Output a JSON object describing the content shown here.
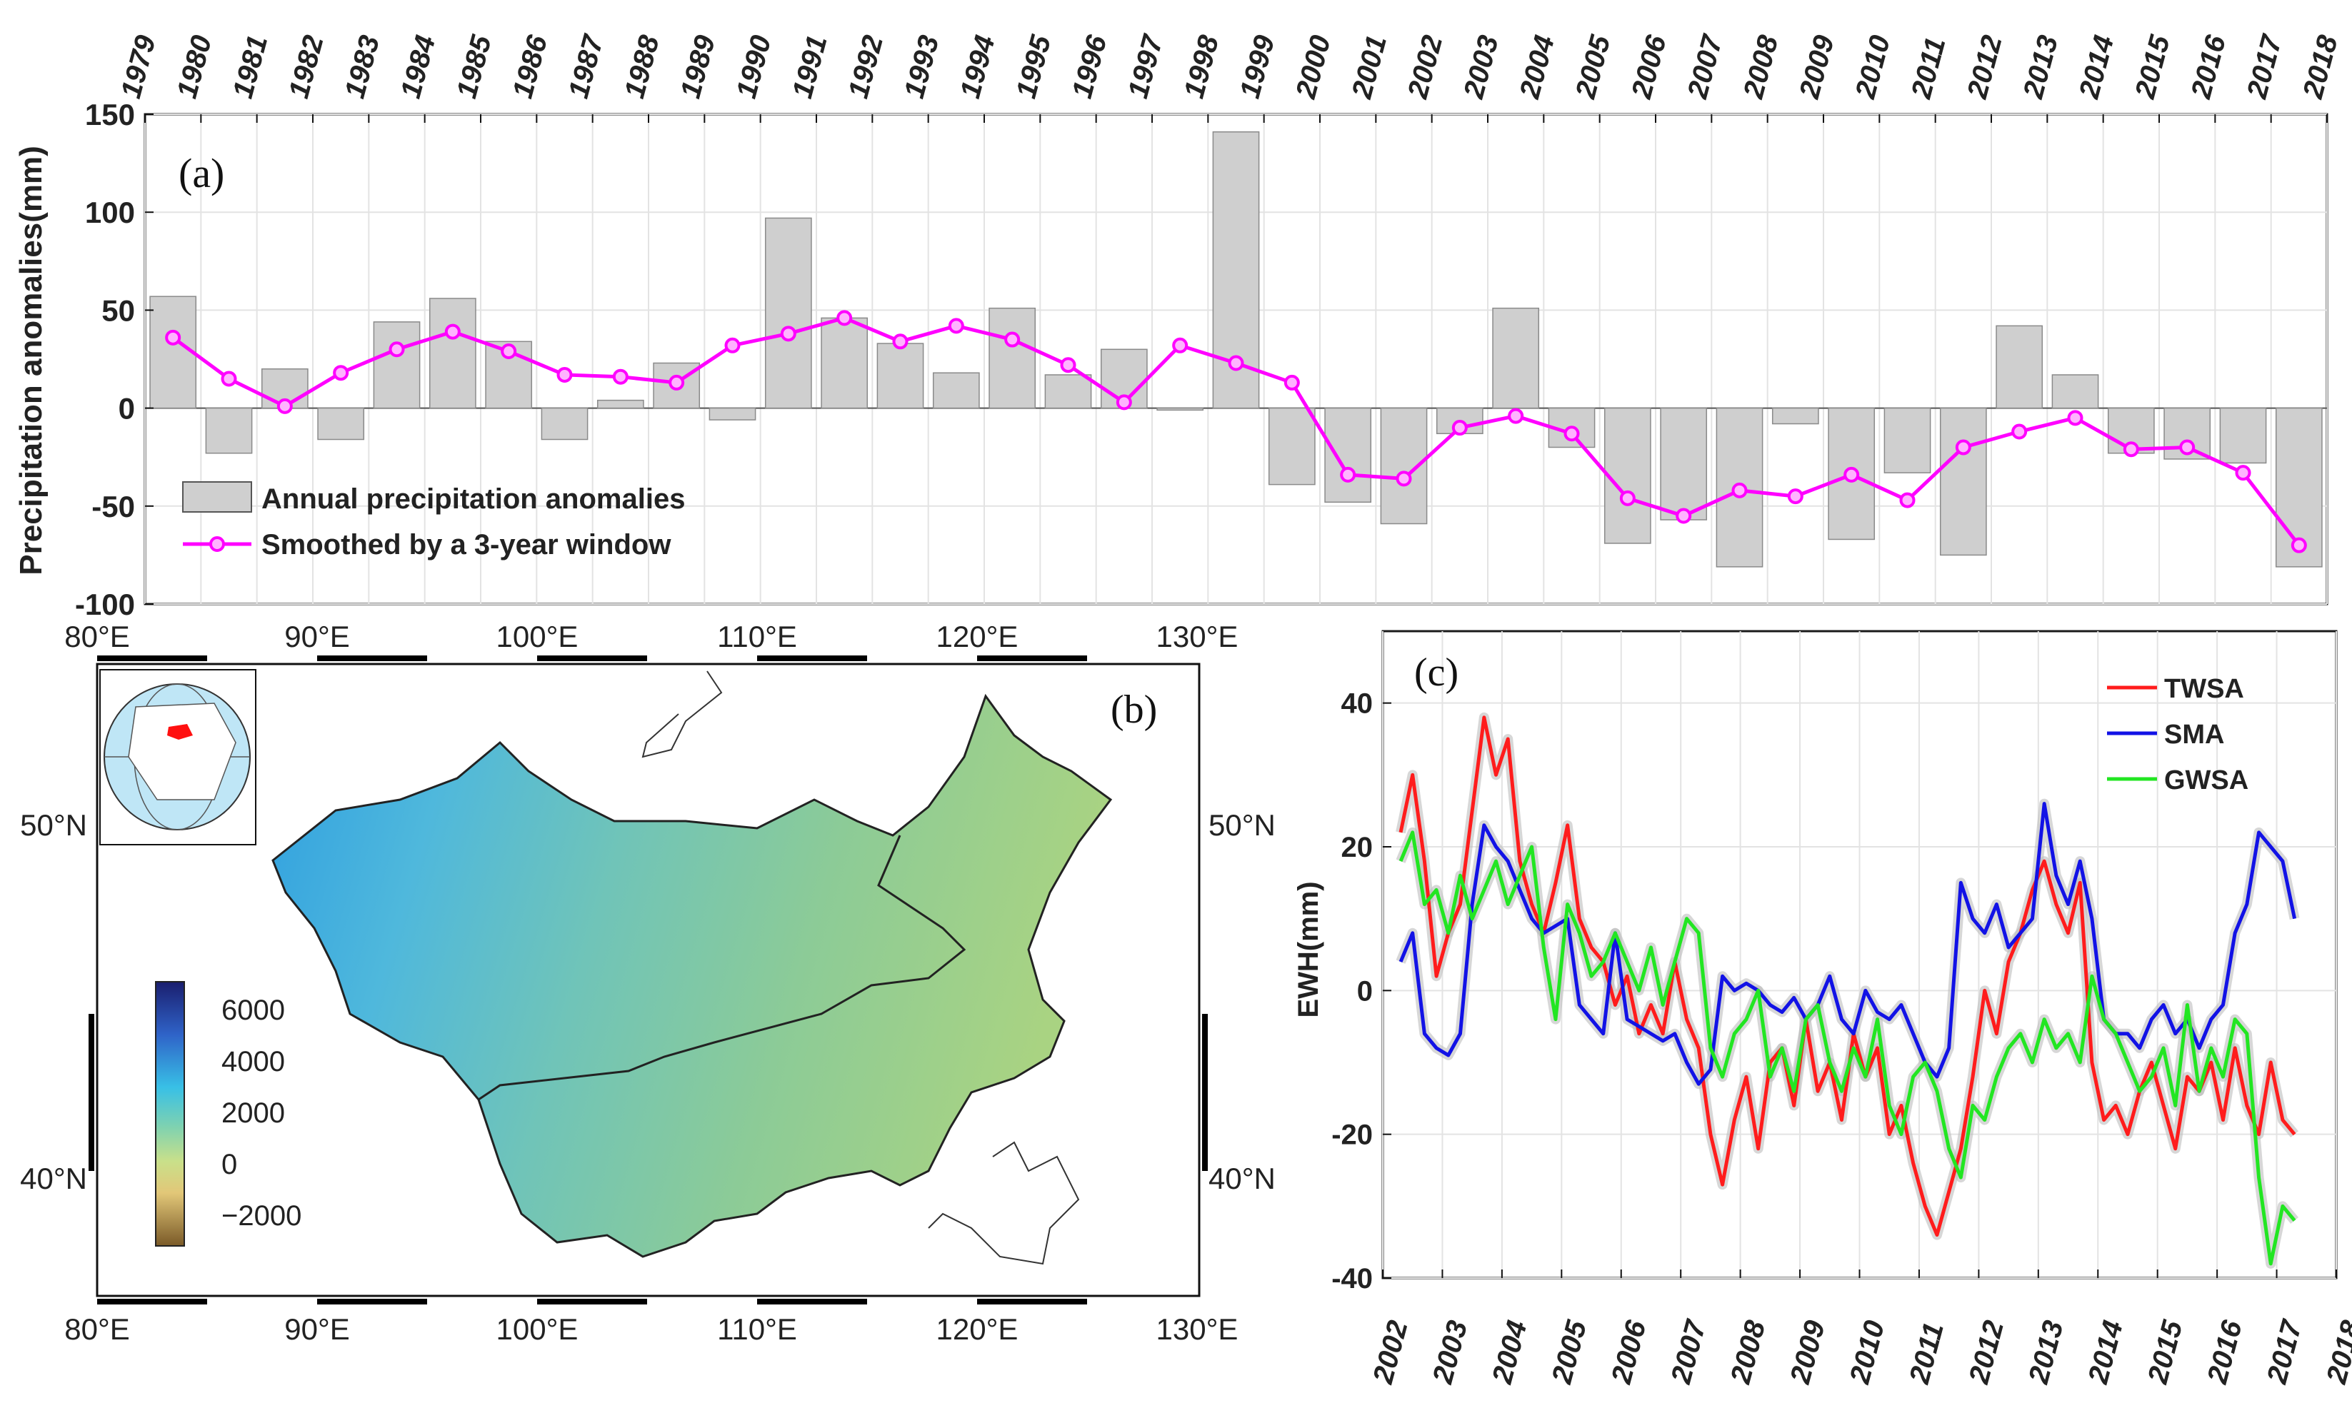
{
  "colors": {
    "bar": "#cfcfcf",
    "smooth": "#ff00ff",
    "twsa": "#ff1c1c",
    "sma": "#1212e6",
    "gwsa": "#22e622",
    "band": "#bdbdbd",
    "border": "#1a1a1a"
  },
  "chart_data": [
    {
      "panel": "(a)",
      "type": "bar",
      "ylabel": "Precipitation anomalies(mm)",
      "ylim": [
        -100,
        150
      ],
      "yticks": [
        "-100",
        "-50",
        "0",
        "50",
        "100",
        "150"
      ],
      "xlim": [
        1979,
        2018
      ],
      "xtick_labels": [
        "1979",
        "1980",
        "1981",
        "1982",
        "1983",
        "1984",
        "1985",
        "1986",
        "1987",
        "1988",
        "1989",
        "1990",
        "1991",
        "1992",
        "1993",
        "1994",
        "1995",
        "1996",
        "1997",
        "1998",
        "1999",
        "2000",
        "2001",
        "2002",
        "2003",
        "2004",
        "2005",
        "2006",
        "2007",
        "2008",
        "2009",
        "2010",
        "2011",
        "2012",
        "2013",
        "2014",
        "2015",
        "2016",
        "2017",
        "2018"
      ],
      "grid": true,
      "legend_position": "bottom-left",
      "series": [
        {
          "name": "Annual precipitation anomalies",
          "kind": "bar",
          "values": [
            57,
            -23,
            20,
            -16,
            44,
            56,
            34,
            -16,
            4,
            23,
            -6,
            97,
            46,
            33,
            18,
            51,
            17,
            30,
            -1,
            141,
            -39,
            -48,
            -59,
            -13,
            51,
            -20,
            -69,
            -57,
            -81,
            -8,
            -67,
            -33,
            -75,
            42,
            17,
            -23,
            -26,
            -28,
            -81
          ]
        },
        {
          "name": "Smoothed by a 3-year window",
          "kind": "line-markers",
          "values": [
            36,
            15,
            1,
            18,
            30,
            39,
            29,
            17,
            16,
            13,
            32,
            38,
            46,
            34,
            42,
            35,
            22,
            3,
            32,
            23,
            13,
            -34,
            -36,
            -10,
            -4,
            -13,
            -46,
            -55,
            -42,
            -45,
            -34,
            -47,
            -20,
            -12,
            -5,
            -21,
            -20,
            -33,
            -70
          ]
        }
      ]
    },
    {
      "panel": "(b)",
      "type": "map",
      "x_labels": [
        "80°E",
        "90°E",
        "100°E",
        "110°E",
        "120°E",
        "130°E"
      ],
      "y_labels": [
        "50°N",
        "40°N"
      ],
      "colorbar_labels": [
        "6000",
        "4000",
        "2000",
        "0",
        "−2000"
      ]
    },
    {
      "panel": "(c)",
      "type": "line",
      "ylabel": "EWH(mm)",
      "ylim": [
        -40,
        50
      ],
      "yticks": [
        "-40",
        "-20",
        "0",
        "20",
        "40"
      ],
      "xlim": [
        2002,
        2018
      ],
      "xtick_labels": [
        "2002",
        "2003",
        "2004",
        "2005",
        "2006",
        "2007",
        "2008",
        "2009",
        "2010",
        "2011",
        "2012",
        "2013",
        "2014",
        "2015",
        "2016",
        "2017",
        "2018"
      ],
      "grid": true,
      "legend_position": "top-right",
      "series": [
        {
          "name": "TWSA",
          "x": [
            2002.3,
            2002.5,
            2002.7,
            2002.9,
            2003.1,
            2003.3,
            2003.5,
            2003.7,
            2003.9,
            2004.1,
            2004.3,
            2004.5,
            2004.7,
            2004.9,
            2005.1,
            2005.3,
            2005.5,
            2005.7,
            2005.9,
            2006.1,
            2006.3,
            2006.5,
            2006.7,
            2006.9,
            2007.1,
            2007.3,
            2007.5,
            2007.7,
            2007.9,
            2008.1,
            2008.3,
            2008.5,
            2008.7,
            2008.9,
            2009.1,
            2009.3,
            2009.5,
            2009.7,
            2009.9,
            2010.1,
            2010.3,
            2010.5,
            2010.7,
            2010.9,
            2011.1,
            2011.3,
            2011.5,
            2011.7,
            2011.9,
            2012.1,
            2012.3,
            2012.5,
            2012.7,
            2012.9,
            2013.1,
            2013.3,
            2013.5,
            2013.7,
            2013.9,
            2014.1,
            2014.3,
            2014.5,
            2014.7,
            2014.9,
            2015.1,
            2015.3,
            2015.5,
            2015.7,
            2015.9,
            2016.1,
            2016.3,
            2016.5,
            2016.7,
            2016.9,
            2017.1,
            2017.3
          ],
          "values": [
            22,
            30,
            18,
            2,
            8,
            12,
            25,
            38,
            30,
            35,
            18,
            12,
            8,
            15,
            23,
            10,
            6,
            4,
            -2,
            2,
            -6,
            -2,
            -6,
            4,
            -4,
            -8,
            -20,
            -27,
            -18,
            -12,
            -22,
            -10,
            -8,
            -16,
            -4,
            -14,
            -10,
            -18,
            -6,
            -12,
            -8,
            -20,
            -16,
            -24,
            -30,
            -34,
            -28,
            -22,
            -12,
            0,
            -6,
            4,
            8,
            14,
            18,
            12,
            8,
            15,
            -10,
            -18,
            -16,
            -20,
            -14,
            -10,
            -16,
            -22,
            -12,
            -14,
            -10,
            -18,
            -8,
            -16,
            -20,
            -10,
            -18,
            -20
          ]
        },
        {
          "name": "SMA",
          "x": [
            2002.3,
            2002.5,
            2002.7,
            2002.9,
            2003.1,
            2003.3,
            2003.5,
            2003.7,
            2003.9,
            2004.1,
            2004.3,
            2004.5,
            2004.7,
            2004.9,
            2005.1,
            2005.3,
            2005.5,
            2005.7,
            2005.9,
            2006.1,
            2006.3,
            2006.5,
            2006.7,
            2006.9,
            2007.1,
            2007.3,
            2007.5,
            2007.7,
            2007.9,
            2008.1,
            2008.3,
            2008.5,
            2008.7,
            2008.9,
            2009.1,
            2009.3,
            2009.5,
            2009.7,
            2009.9,
            2010.1,
            2010.3,
            2010.5,
            2010.7,
            2010.9,
            2011.1,
            2011.3,
            2011.5,
            2011.7,
            2011.9,
            2012.1,
            2012.3,
            2012.5,
            2012.7,
            2012.9,
            2013.1,
            2013.3,
            2013.5,
            2013.7,
            2013.9,
            2014.1,
            2014.3,
            2014.5,
            2014.7,
            2014.9,
            2015.1,
            2015.3,
            2015.5,
            2015.7,
            2015.9,
            2016.1,
            2016.3,
            2016.5,
            2016.7,
            2016.9,
            2017.1,
            2017.3
          ],
          "values": [
            4,
            8,
            -6,
            -8,
            -9,
            -6,
            12,
            23,
            20,
            18,
            14,
            10,
            8,
            9,
            10,
            -2,
            -4,
            -6,
            8,
            -4,
            -5,
            -6,
            -7,
            -6,
            -10,
            -13,
            -11,
            2,
            0,
            1,
            0,
            -2,
            -3,
            -1,
            -4,
            -2,
            2,
            -4,
            -6,
            0,
            -3,
            -4,
            -2,
            -6,
            -10,
            -12,
            -8,
            15,
            10,
            8,
            12,
            6,
            8,
            10,
            26,
            16,
            12,
            18,
            10,
            -4,
            -6,
            -6,
            -8,
            -4,
            -2,
            -6,
            -4,
            -8,
            -4,
            -2,
            8,
            12,
            22,
            20,
            18,
            10
          ]
        },
        {
          "name": "GWSA",
          "x": [
            2002.3,
            2002.5,
            2002.7,
            2002.9,
            2003.1,
            2003.3,
            2003.5,
            2003.7,
            2003.9,
            2004.1,
            2004.3,
            2004.5,
            2004.7,
            2004.9,
            2005.1,
            2005.3,
            2005.5,
            2005.7,
            2005.9,
            2006.1,
            2006.3,
            2006.5,
            2006.7,
            2006.9,
            2007.1,
            2007.3,
            2007.5,
            2007.7,
            2007.9,
            2008.1,
            2008.3,
            2008.5,
            2008.7,
            2008.9,
            2009.1,
            2009.3,
            2009.5,
            2009.7,
            2009.9,
            2010.1,
            2010.3,
            2010.5,
            2010.7,
            2010.9,
            2011.1,
            2011.3,
            2011.5,
            2011.7,
            2011.9,
            2012.1,
            2012.3,
            2012.5,
            2012.7,
            2012.9,
            2013.1,
            2013.3,
            2013.5,
            2013.7,
            2013.9,
            2014.1,
            2014.3,
            2014.5,
            2014.7,
            2014.9,
            2015.1,
            2015.3,
            2015.5,
            2015.7,
            2015.9,
            2016.1,
            2016.3,
            2016.5,
            2016.7,
            2016.9,
            2017.1,
            2017.3
          ],
          "values": [
            18,
            22,
            12,
            14,
            8,
            16,
            10,
            14,
            18,
            12,
            16,
            20,
            6,
            -4,
            12,
            8,
            2,
            4,
            8,
            4,
            0,
            6,
            -2,
            4,
            10,
            8,
            -8,
            -12,
            -6,
            -4,
            0,
            -12,
            -8,
            -14,
            -4,
            -2,
            -10,
            -14,
            -8,
            -12,
            -4,
            -16,
            -20,
            -12,
            -10,
            -14,
            -22,
            -26,
            -16,
            -18,
            -12,
            -8,
            -6,
            -10,
            -4,
            -8,
            -6,
            -10,
            2,
            -4,
            -6,
            -10,
            -14,
            -12,
            -8,
            -16,
            -2,
            -14,
            -8,
            -12,
            -4,
            -6,
            -26,
            -38,
            -30,
            -32
          ]
        }
      ]
    }
  ]
}
